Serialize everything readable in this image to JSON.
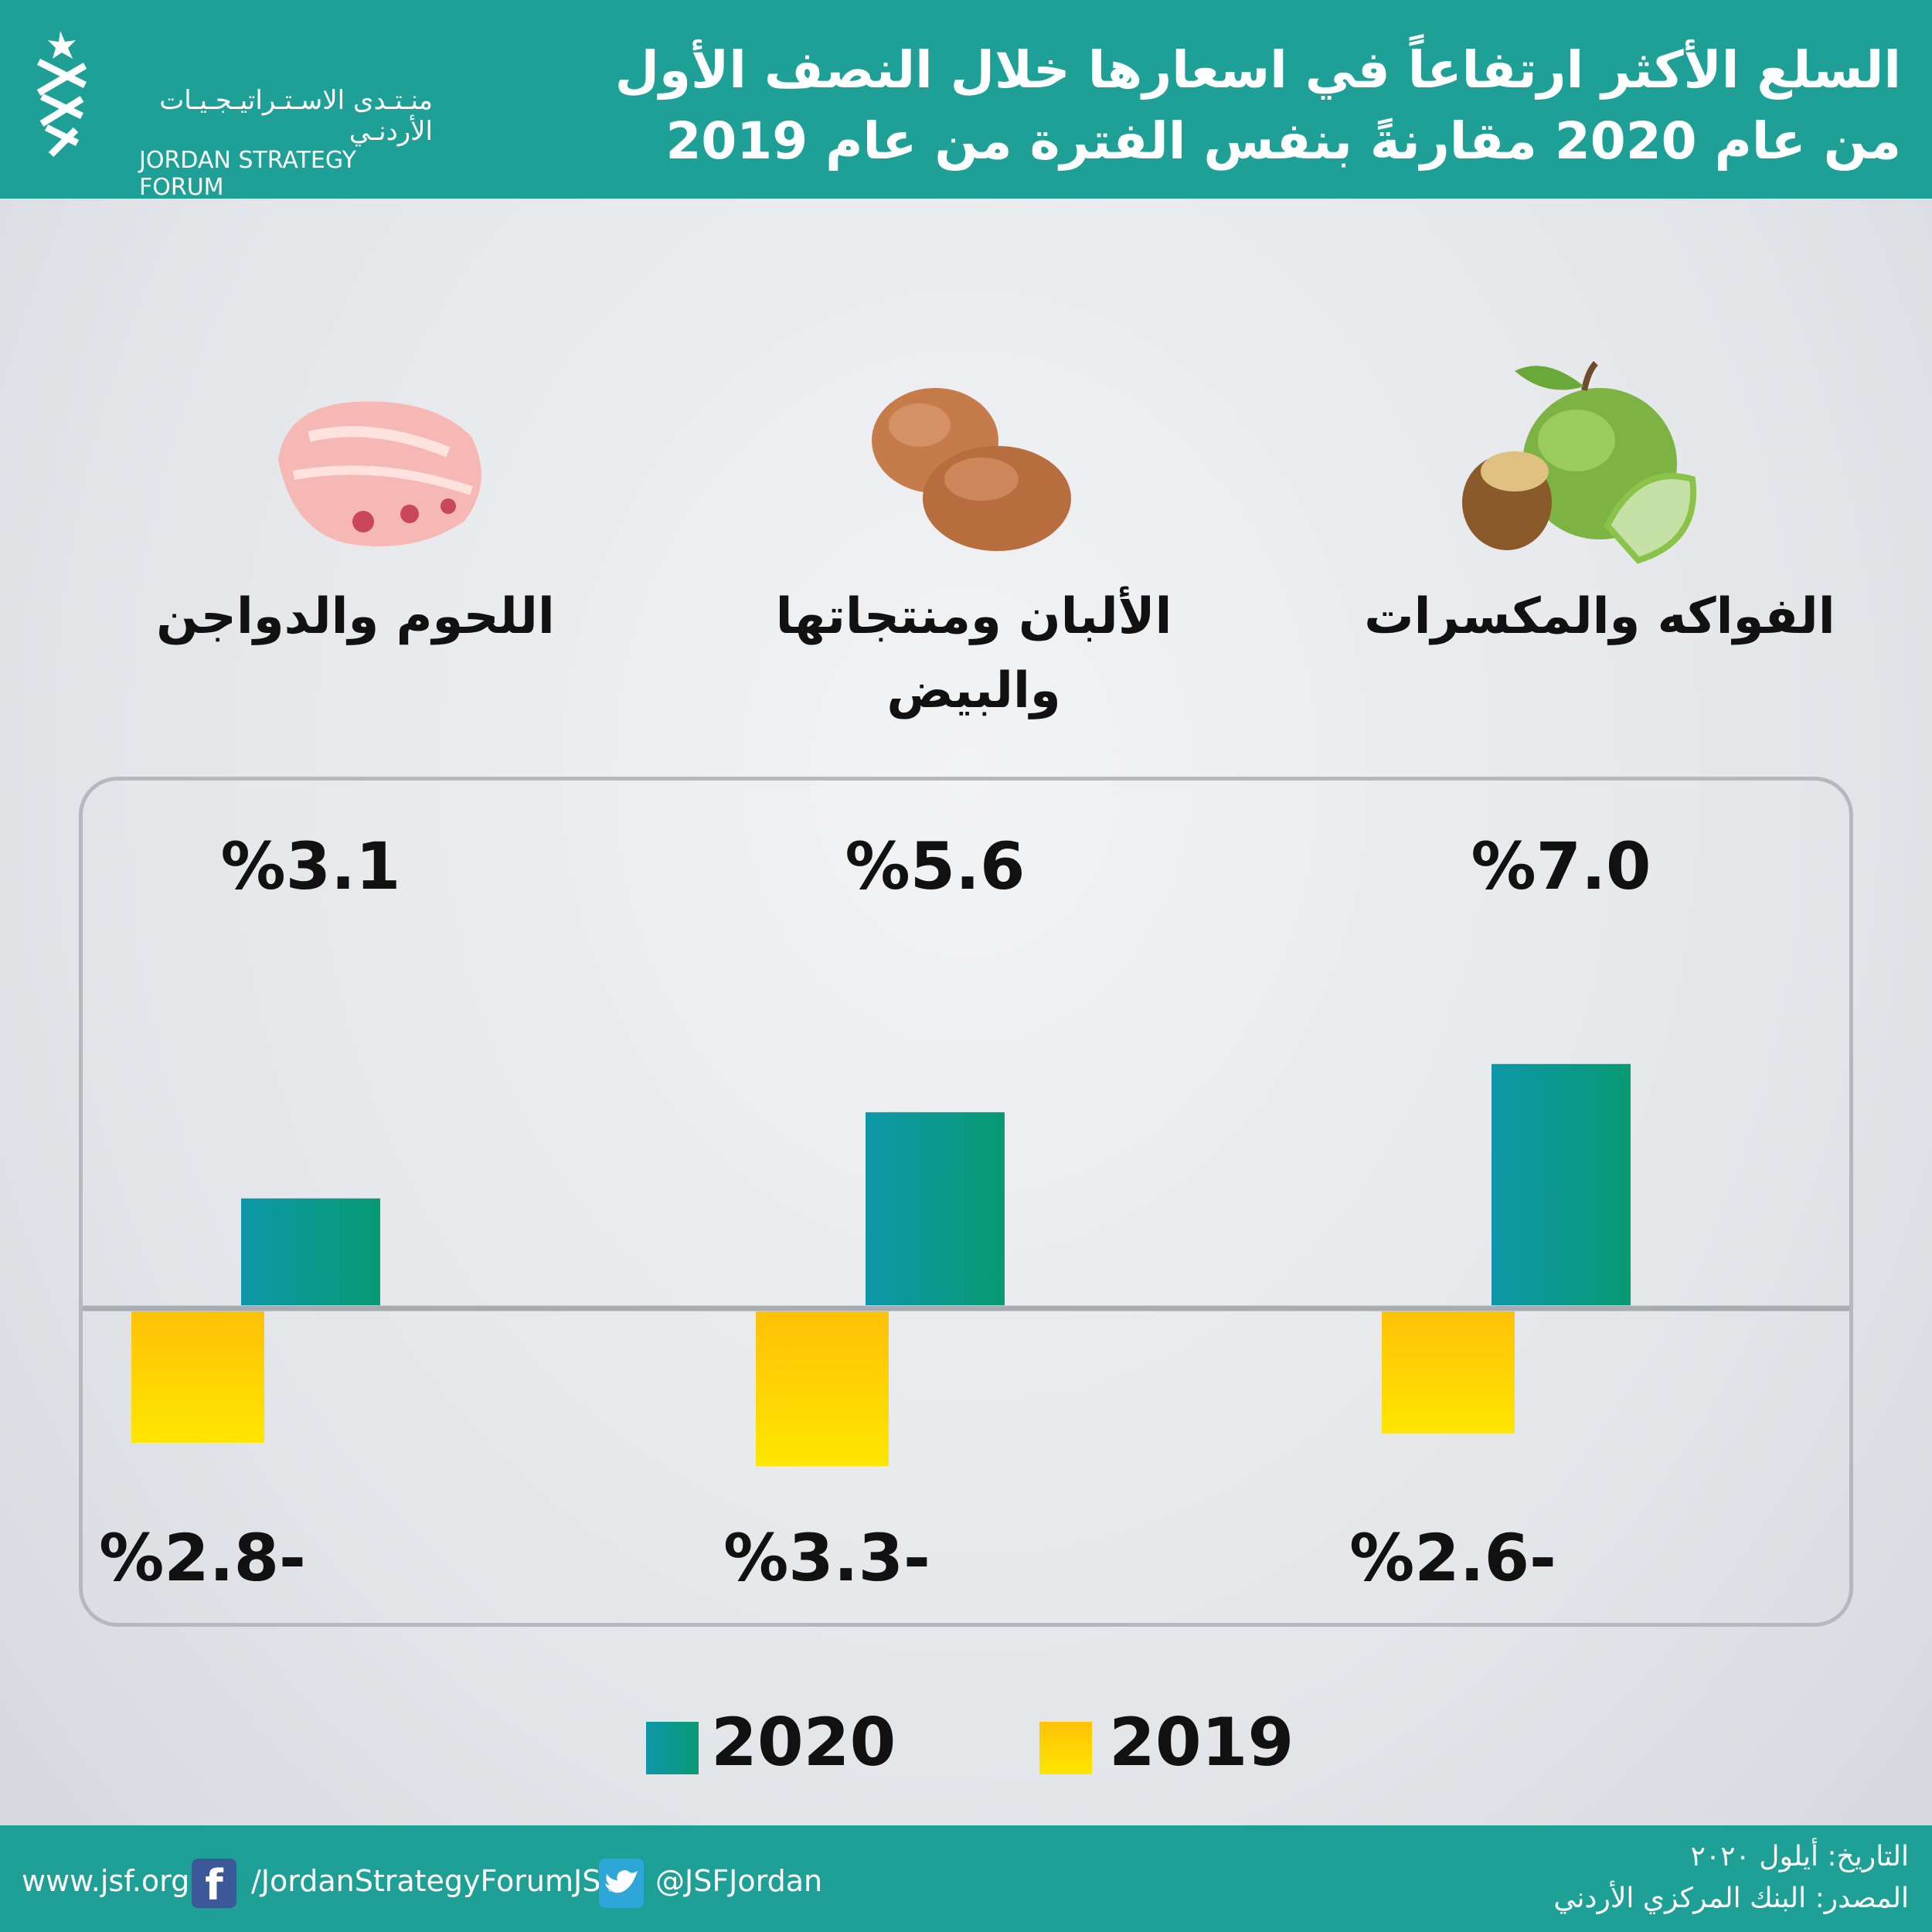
{
  "header": {
    "title_line1": "السلع الأكثر ارتفاعاً في اسعارها خلال النصف الأول",
    "title_line2": "من عام 2020 مقارنةً بنفس الفترة من عام 2019",
    "logo_ar": "منـتـدى الاسـتـراتيـجـيـات الأردنـي",
    "logo_en": "JORDAN STRATEGY FORUM"
  },
  "categories": [
    {
      "label": "الفواكه والمكسرات",
      "icon": "apple-nut-icon"
    },
    {
      "label": "الألبان ومنتجاتها والبيض",
      "icon": "eggs-icon"
    },
    {
      "label": "اللحوم والدواجن",
      "icon": "meat-icon"
    }
  ],
  "chart_data": {
    "type": "bar",
    "categories": [
      "الفواكه والمكسرات",
      "الألبان ومنتجاتها والبيض",
      "اللحوم والدواجن"
    ],
    "series": [
      {
        "name": "2020",
        "values": [
          7.0,
          5.6,
          3.1
        ],
        "labels": [
          "%7.0",
          "%5.6",
          "%3.1"
        ]
      },
      {
        "name": "2019",
        "values": [
          -2.6,
          -3.3,
          -2.8
        ],
        "labels": [
          "%2.6-",
          "%3.3-",
          "%2.8-"
        ]
      }
    ],
    "colors": {
      "2020": "#0d9a8c",
      "2019": "#ffd400"
    },
    "zero_line": true
  },
  "legend": {
    "items": [
      "2020",
      "2019"
    ]
  },
  "footer": {
    "website": "www.jsf.org",
    "facebook": "/JordanStrategyForumJSF",
    "twitter": "@JSFJordan",
    "date": "التاريخ: أيلول ٢٠٢٠",
    "source": "المصدر: البنك المركزي الأردني"
  }
}
